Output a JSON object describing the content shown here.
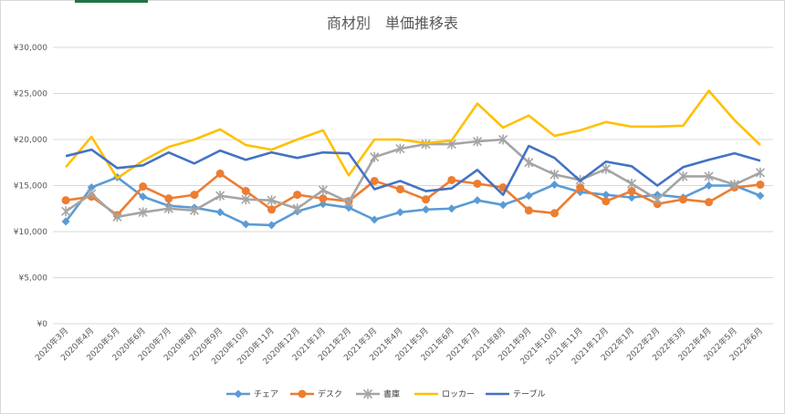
{
  "chart_data": {
    "type": "line",
    "title": "商材別　単価推移表",
    "xlabel": "",
    "ylabel": "",
    "ylim": [
      0,
      30000
    ],
    "yticks": [
      0,
      5000,
      10000,
      15000,
      20000,
      25000,
      30000
    ],
    "ytick_labels": [
      "¥0",
      "¥5,000",
      "¥10,000",
      "¥15,000",
      "¥20,000",
      "¥25,000",
      "¥30,000"
    ],
    "grid": true,
    "legend_position": "bottom",
    "categories": [
      "2020年3月",
      "2020年4月",
      "2020年5月",
      "2020年6月",
      "2020年7月",
      "2020年8月",
      "2020年9月",
      "2020年10月",
      "2020年11月",
      "2020年12月",
      "2021年1月",
      "2021年2月",
      "2021年3月",
      "2021年4月",
      "2021年5月",
      "2021年6月",
      "2021年7月",
      "2021年8月",
      "2021年9月",
      "2021年10月",
      "2021年11月",
      "2021年12月",
      "2022年1月",
      "2022年2月",
      "2022年3月",
      "2022年4月",
      "2022年5月",
      "2022年6月"
    ],
    "series": [
      {
        "name": "チェア",
        "color": "#5b9bd5",
        "marker": "diamond",
        "values": [
          11100,
          14800,
          15900,
          13800,
          12800,
          12600,
          12100,
          10800,
          10700,
          12200,
          13000,
          12600,
          11300,
          12100,
          12400,
          12500,
          13400,
          12900,
          13900,
          15100,
          14300,
          14000,
          13700,
          14000,
          13700,
          15000,
          15000,
          13900
        ]
      },
      {
        "name": "デスク",
        "color": "#ed7d31",
        "marker": "circle",
        "values": [
          13400,
          13800,
          11800,
          14900,
          13600,
          14000,
          16300,
          14400,
          12400,
          14000,
          13600,
          13300,
          15500,
          14600,
          13500,
          15600,
          15200,
          14800,
          12300,
          12000,
          14800,
          13300,
          14400,
          13000,
          13500,
          13200,
          14800,
          15100
        ]
      },
      {
        "name": "書庫",
        "color": "#a5a5a5",
        "marker": "star",
        "values": [
          12200,
          14100,
          11600,
          12100,
          12500,
          12300,
          13900,
          13500,
          13400,
          12500,
          14500,
          13200,
          18100,
          19000,
          19500,
          19500,
          19800,
          20000,
          17500,
          16200,
          15600,
          16800,
          15200,
          13500,
          16000,
          16000,
          15100,
          16400
        ]
      },
      {
        "name": "ロッカー",
        "color": "#ffc000",
        "marker": "none",
        "values": [
          17000,
          20300,
          15800,
          17700,
          19200,
          20000,
          21100,
          19400,
          18900,
          20000,
          21000,
          16100,
          20000,
          20000,
          19600,
          19900,
          23900,
          21300,
          22600,
          20400,
          21000,
          21900,
          21400,
          21400,
          21500,
          25300,
          22100,
          19400
        ]
      },
      {
        "name": "テーブル",
        "color": "#4472c4",
        "marker": "none",
        "values": [
          18200,
          18900,
          16900,
          17200,
          18600,
          17400,
          18800,
          17800,
          18600,
          18000,
          18600,
          18500,
          14600,
          15500,
          14400,
          14700,
          16700,
          14000,
          19300,
          18000,
          15500,
          17600,
          17100,
          15000,
          17000,
          17800,
          18500,
          17700
        ]
      }
    ]
  }
}
